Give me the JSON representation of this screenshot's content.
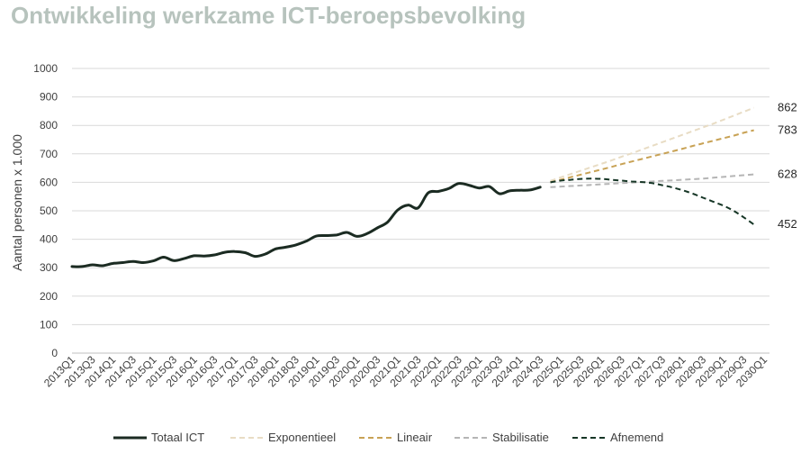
{
  "chart_data": {
    "type": "line",
    "title": "Ontwikkeling werkzame ICT-beroepsbevolking",
    "ylabel": "Aantal personen x 1.000",
    "ylim": [
      0,
      1000
    ],
    "yticks": [
      0,
      100,
      200,
      300,
      400,
      500,
      600,
      700,
      800,
      900,
      1000
    ],
    "grid": true,
    "legend_position": "bottom",
    "x_labels": [
      "2013Q1",
      "2013Q3",
      "2014Q1",
      "2014Q3",
      "2015Q1",
      "2015Q3",
      "2016Q1",
      "2016Q3",
      "2017Q1",
      "2017Q3",
      "2018Q1",
      "2018Q3",
      "2019Q1",
      "2019Q3",
      "2020Q1",
      "2020Q3",
      "2021Q1",
      "2021Q3",
      "2022Q1",
      "2022Q3",
      "2023Q1",
      "2023Q3",
      "2024Q1",
      "2024Q3",
      "2025Q1",
      "2025Q3",
      "2026Q1",
      "2026Q3",
      "2027Q1",
      "2027Q3",
      "2028Q1",
      "2028Q3",
      "2029Q1",
      "2029Q3",
      "2030Q1"
    ],
    "x_quarters": [
      "2013Q1",
      "2013Q2",
      "2013Q3",
      "2013Q4",
      "2014Q1",
      "2014Q2",
      "2014Q3",
      "2014Q4",
      "2015Q1",
      "2015Q2",
      "2015Q3",
      "2015Q4",
      "2016Q1",
      "2016Q2",
      "2016Q3",
      "2016Q4",
      "2017Q1",
      "2017Q2",
      "2017Q3",
      "2017Q4",
      "2018Q1",
      "2018Q2",
      "2018Q3",
      "2018Q4",
      "2019Q1",
      "2019Q2",
      "2019Q3",
      "2019Q4",
      "2020Q1",
      "2020Q2",
      "2020Q3",
      "2020Q4",
      "2021Q1",
      "2021Q2",
      "2021Q3",
      "2021Q4",
      "2022Q1",
      "2022Q2",
      "2022Q3",
      "2022Q4",
      "2023Q1",
      "2023Q2",
      "2023Q3",
      "2023Q4",
      "2024Q1",
      "2024Q2",
      "2024Q3",
      "2024Q4",
      "2025Q1",
      "2025Q2",
      "2025Q3",
      "2025Q4",
      "2026Q1",
      "2026Q2",
      "2026Q3",
      "2026Q4",
      "2027Q1",
      "2027Q2",
      "2027Q3",
      "2027Q4",
      "2028Q1",
      "2028Q2",
      "2028Q3",
      "2028Q4",
      "2029Q1",
      "2029Q2",
      "2029Q3",
      "2029Q4",
      "2030Q1"
    ],
    "series": [
      {
        "name": "Totaal ICT",
        "color": "#1b2b22",
        "style": "solid",
        "start": "2013Q1",
        "values": [
          304,
          304,
          310,
          307,
          315,
          318,
          322,
          318,
          324,
          337,
          325,
          332,
          342,
          341,
          345,
          354,
          357,
          353,
          340,
          348,
          366,
          372,
          380,
          393,
          411,
          413,
          415,
          424,
          410,
          420,
          440,
          460,
          503,
          520,
          510,
          563,
          568,
          578,
          596,
          590,
          580,
          585,
          560,
          570,
          572,
          573,
          583
        ]
      },
      {
        "name": "Exponentieel",
        "color": "#e8dcc4",
        "style": "dashed",
        "start": "2024Q4",
        "end_label": "862",
        "values": [
          605,
          617,
          629,
          641,
          653,
          665,
          677,
          690,
          702,
          715,
          728,
          741,
          754,
          767,
          780,
          793,
          806,
          820,
          834,
          848,
          862
        ]
      },
      {
        "name": "Lineair",
        "color": "#c8a255",
        "style": "dashed",
        "start": "2024Q4",
        "end_label": "783",
        "values": [
          600,
          609,
          618,
          627,
          636,
          645,
          654,
          664,
          673,
          682,
          691,
          700,
          709,
          718,
          728,
          737,
          746,
          755,
          764,
          774,
          783
        ]
      },
      {
        "name": "Stabilisatie",
        "color": "#b5b5b5",
        "style": "dashed",
        "start": "2024Q4",
        "end_label": "628",
        "values": [
          583,
          585,
          587,
          589,
          591,
          593,
          595,
          597,
          599,
          601,
          603,
          605,
          607,
          609,
          611,
          613,
          616,
          619,
          622,
          625,
          628
        ]
      },
      {
        "name": "Afnemend",
        "color": "#163626",
        "style": "dashed",
        "start": "2024Q4",
        "end_label": "452",
        "values": [
          600,
          606,
          609,
          612,
          613,
          612,
          609,
          606,
          603,
          601,
          597,
          590,
          582,
          572,
          560,
          546,
          532,
          518,
          500,
          477,
          452
        ]
      }
    ]
  }
}
